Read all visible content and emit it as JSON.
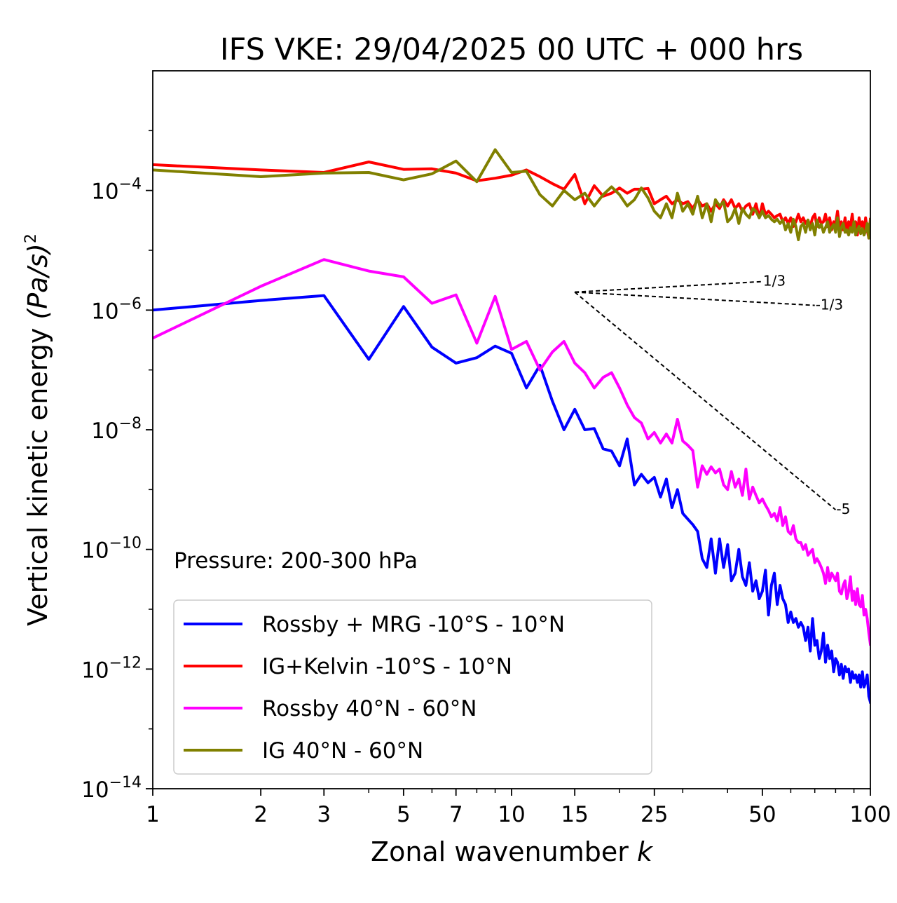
{
  "chart_data": {
    "type": "line",
    "title": "IFS VKE: 29/04/2025 00 UTC + 000 hrs",
    "xlabel_text": "Zonal wavenumber ",
    "xlabel_var": "k",
    "ylabel_text": "Vertical kinetic energy ",
    "ylabel_expr": "(Pa/s)",
    "ylabel_exp": "2",
    "x_scale": "log",
    "y_scale": "log",
    "xlim": [
      1,
      100
    ],
    "ylim": [
      1e-14,
      0.01
    ],
    "x_ticks": [
      1,
      2,
      3,
      5,
      7,
      10,
      15,
      25,
      50,
      100
    ],
    "x_tick_labels": [
      "1",
      "2",
      "3",
      "5",
      "7",
      "10",
      "15",
      "25",
      "50",
      "100"
    ],
    "y_ticks": [
      {
        "value": 1e-14,
        "base": "10",
        "exp": "−14"
      },
      {
        "value": 1e-12,
        "base": "10",
        "exp": "−12"
      },
      {
        "value": 1e-10,
        "base": "10",
        "exp": "−10"
      },
      {
        "value": 1e-08,
        "base": "10",
        "exp": "−8"
      },
      {
        "value": 1e-06,
        "base": "10",
        "exp": "−6"
      },
      {
        "value": 0.0001,
        "base": "10",
        "exp": "−4"
      }
    ],
    "annotation": "Pressure: 200-300 hPa",
    "legend_position": "lower-left",
    "grid": false,
    "series": [
      {
        "name": "Rossby + MRG -10°S - 10°N",
        "color": "#0000ff",
        "x": [
          1,
          2,
          3,
          4,
          5,
          6,
          7,
          8,
          9,
          10,
          11,
          12,
          13,
          14,
          15,
          16,
          17,
          18,
          19,
          20,
          21,
          22,
          23,
          24,
          25,
          26,
          27,
          28,
          29,
          30,
          31,
          32,
          33,
          34,
          35,
          36,
          37,
          38,
          39,
          40,
          41,
          42,
          43,
          44,
          45,
          46,
          47,
          48,
          49,
          50,
          51,
          52,
          53,
          54,
          55,
          56,
          57,
          58,
          59,
          60,
          61,
          62,
          63,
          64,
          65,
          66,
          67,
          68,
          69,
          70,
          71,
          72,
          73,
          74,
          75,
          76,
          77,
          78,
          79,
          80,
          81,
          82,
          83,
          84,
          85,
          86,
          87,
          88,
          89,
          90,
          91,
          92,
          93,
          94,
          95,
          96,
          97,
          98,
          99,
          100
        ],
        "y": [
          1e-06,
          1.45e-06,
          1.75e-06,
          1.5e-07,
          1.15e-06,
          2.4e-07,
          1.3e-07,
          1.6e-07,
          2.5e-07,
          1.9e-07,
          5e-08,
          1.2e-07,
          3e-08,
          1e-08,
          2.2e-08,
          1e-08,
          1.05e-08,
          4.8e-09,
          4.4e-09,
          2.5e-09,
          7e-09,
          1.2e-09,
          1.8e-09,
          1.3e-09,
          1.6e-09,
          7.5e-10,
          1.5e-09,
          5e-10,
          1e-09,
          4e-10,
          3.2e-10,
          2.6e-10,
          2e-10,
          7e-11,
          5e-11,
          1.5e-10,
          4e-11,
          1.5e-10,
          5e-11,
          1.2e-10,
          3e-11,
          4e-11,
          1e-10,
          3.5e-11,
          2.5e-11,
          6e-11,
          2e-11,
          3e-11,
          1.5e-11,
          2e-11,
          4.5e-11,
          8e-12,
          2.5e-11,
          4e-11,
          1.2e-11,
          2.5e-11,
          1.5e-11,
          1.2e-11,
          6e-12,
          9e-12,
          6e-12,
          7e-12,
          5e-12,
          6e-12,
          5e-12,
          3e-12,
          5e-12,
          2e-12,
          7e-12,
          2.5e-12,
          3e-12,
          1.5e-12,
          2e-12,
          4e-12,
          1.3e-12,
          2.5e-12,
          1.5e-12,
          2e-12,
          9e-13,
          1.5e-12,
          1.3e-12,
          8e-13,
          1.2e-12,
          7e-13,
          1.1e-12,
          9e-13,
          1e-12,
          6e-13,
          9e-13,
          7e-13,
          8e-13,
          6e-13,
          8e-13,
          5e-13,
          9e-13,
          5e-13,
          6e-13,
          8e-13,
          3.5e-13,
          2.8e-13
        ]
      },
      {
        "name": "IG+Kelvin -10°S - 10°N",
        "color": "#ff0000",
        "x": [
          1,
          2,
          3,
          4,
          5,
          6,
          7,
          8,
          9,
          10,
          11,
          12,
          13,
          14,
          15,
          16,
          17,
          18,
          19,
          20,
          21,
          22,
          23,
          24,
          25,
          26,
          27,
          28,
          29,
          30,
          31,
          32,
          33,
          34,
          35,
          36,
          37,
          38,
          39,
          40,
          41,
          42,
          43,
          44,
          45,
          46,
          47,
          48,
          49,
          50,
          51,
          52,
          53,
          54,
          55,
          56,
          57,
          58,
          59,
          60,
          61,
          62,
          63,
          64,
          65,
          66,
          67,
          68,
          69,
          70,
          71,
          72,
          73,
          74,
          75,
          76,
          77,
          78,
          79,
          80,
          81,
          82,
          83,
          84,
          85,
          86,
          87,
          88,
          89,
          90,
          91,
          92,
          93,
          94,
          95,
          96,
          97,
          98,
          99,
          100
        ],
        "y": [
          0.00027,
          0.00022,
          0.0002,
          0.0003,
          0.000225,
          0.00023,
          0.000195,
          0.000145,
          0.00016,
          0.00018,
          0.00022,
          0.00017,
          0.00013,
          0.000105,
          0.000185,
          6e-05,
          0.00012,
          8e-05,
          9e-05,
          0.00011,
          9e-05,
          0.000105,
          0.000105,
          0.000108,
          6e-05,
          7e-05,
          8e-05,
          6e-05,
          7e-05,
          6e-05,
          6.5e-05,
          5e-05,
          7e-05,
          5.5e-05,
          6e-05,
          4.5e-05,
          6e-05,
          5e-05,
          7e-05,
          5.5e-05,
          7e-05,
          5e-05,
          6e-05,
          4.5e-05,
          5.5e-05,
          6e-05,
          4e-05,
          6e-05,
          3.5e-05,
          6e-05,
          4e-05,
          4.5e-05,
          4e-05,
          3.5e-05,
          3.8e-05,
          4e-05,
          3e-05,
          3.5e-05,
          2.8e-05,
          3.5e-05,
          2.5e-05,
          3e-05,
          4e-05,
          3e-05,
          3.5e-05,
          2.8e-05,
          3.2e-05,
          2.5e-05,
          3.5e-05,
          4e-05,
          2.5e-05,
          3.5e-05,
          2.8e-05,
          3e-05,
          4e-05,
          2.5e-05,
          3.5e-05,
          2.2e-05,
          3e-05,
          2.8e-05,
          4.5e-05,
          2.5e-05,
          3e-05,
          2.2e-05,
          3.5e-05,
          2e-05,
          3e-05,
          2.5e-05,
          4e-05,
          2.2e-05,
          3e-05,
          1.8e-05,
          3.5e-05,
          2.5e-05,
          3e-05,
          2e-05,
          3.5e-05,
          2.2e-05,
          1.6e-05,
          3.3e-05
        ]
      },
      {
        "name": "Rossby 40°N - 60°N",
        "color": "#ff00ff",
        "x": [
          1,
          2,
          3,
          4,
          5,
          6,
          7,
          8,
          9,
          10,
          11,
          12,
          13,
          14,
          15,
          16,
          17,
          18,
          19,
          20,
          21,
          22,
          23,
          24,
          25,
          26,
          27,
          28,
          29,
          30,
          31,
          32,
          33,
          34,
          35,
          36,
          37,
          38,
          39,
          40,
          41,
          42,
          43,
          44,
          45,
          46,
          47,
          48,
          49,
          50,
          51,
          52,
          53,
          54,
          55,
          56,
          57,
          58,
          59,
          60,
          61,
          62,
          63,
          64,
          65,
          66,
          67,
          68,
          69,
          70,
          71,
          72,
          73,
          74,
          75,
          76,
          77,
          78,
          79,
          80,
          81,
          82,
          83,
          84,
          85,
          86,
          87,
          88,
          89,
          90,
          91,
          92,
          93,
          94,
          95,
          96,
          97,
          98,
          99,
          100
        ],
        "y": [
          3.4e-07,
          2.5e-06,
          7e-06,
          4.5e-06,
          3.6e-06,
          1.3e-06,
          1.8e-06,
          2.8e-07,
          1.7e-06,
          2.2e-07,
          3e-07,
          1e-07,
          2e-07,
          3e-07,
          1.3e-07,
          9e-08,
          5e-08,
          7.5e-08,
          9e-08,
          5e-08,
          2.6e-08,
          1.6e-08,
          1.3e-08,
          7e-09,
          9e-09,
          6e-09,
          8.5e-09,
          6e-09,
          1.5e-08,
          6.5e-09,
          5.5e-09,
          4.5e-09,
          1.1e-09,
          2.5e-09,
          1.8e-09,
          2.4e-09,
          1.9e-09,
          2.2e-09,
          1.2e-09,
          1e-09,
          2e-09,
          1.1e-09,
          1.5e-09,
          8e-10,
          2.2e-09,
          7e-10,
          1.1e-09,
          8e-10,
          6e-10,
          7e-10,
          5.5e-10,
          4.5e-10,
          3.5e-10,
          4e-10,
          3e-10,
          5e-10,
          2.5e-10,
          3.5e-10,
          2e-10,
          1.8e-10,
          2.5e-10,
          1.5e-10,
          1.3e-10,
          1.3e-10,
          1e-10,
          1.2e-10,
          8e-11,
          9e-11,
          1e-10,
          6e-11,
          7e-11,
          6e-11,
          5e-11,
          4e-11,
          2.7e-11,
          5e-11,
          3e-11,
          4e-11,
          3.5e-11,
          3e-11,
          4e-11,
          2e-11,
          1.8e-11,
          2.5e-11,
          3e-11,
          1.5e-11,
          2e-11,
          3.5e-11,
          1.4e-11,
          2e-11,
          1.2e-11,
          2.2e-11,
          1.2e-11,
          1.1e-11,
          1.7e-11,
          8e-12,
          1e-11,
          7e-12,
          4e-12,
          2.6e-12
        ]
      },
      {
        "name": "IG 40°N - 60°N",
        "color": "#808000",
        "x": [
          1,
          2,
          3,
          4,
          5,
          6,
          7,
          8,
          9,
          10,
          11,
          12,
          13,
          14,
          15,
          16,
          17,
          18,
          19,
          20,
          21,
          22,
          23,
          24,
          25,
          26,
          27,
          28,
          29,
          30,
          31,
          32,
          33,
          34,
          35,
          36,
          37,
          38,
          39,
          40,
          41,
          42,
          43,
          44,
          45,
          46,
          47,
          48,
          49,
          50,
          51,
          52,
          53,
          54,
          55,
          56,
          57,
          58,
          59,
          60,
          61,
          62,
          63,
          64,
          65,
          66,
          67,
          68,
          69,
          70,
          71,
          72,
          73,
          74,
          75,
          76,
          77,
          78,
          79,
          80,
          81,
          82,
          83,
          84,
          85,
          86,
          87,
          88,
          89,
          90,
          91,
          92,
          93,
          94,
          95,
          96,
          97,
          98,
          99,
          100
        ],
        "y": [
          0.00022,
          0.00017,
          0.000195,
          0.0002,
          0.00015,
          0.00019,
          0.00031,
          0.00014,
          0.00048,
          0.0002,
          0.00021,
          8.5e-05,
          5.5e-05,
          0.0001,
          7e-05,
          9e-05,
          5.5e-05,
          8.5e-05,
          0.000115,
          8.5e-05,
          5.5e-05,
          7e-05,
          0.00011,
          7.5e-05,
          4.5e-05,
          3.5e-05,
          6e-05,
          3.5e-05,
          9e-05,
          4.5e-05,
          6e-05,
          4e-05,
          8e-05,
          3.5e-05,
          6e-05,
          3e-05,
          7e-05,
          5.5e-05,
          6.5e-05,
          3e-05,
          3.5e-05,
          5e-05,
          2.8e-05,
          5e-05,
          4e-05,
          3.5e-05,
          5e-05,
          4.5e-05,
          3.5e-05,
          4.5e-05,
          3.5e-05,
          3.8e-05,
          3.3e-05,
          3e-05,
          3.3e-05,
          2.8e-05,
          3.2e-05,
          2.2e-05,
          2.8e-05,
          2e-05,
          3.3e-05,
          2.5e-05,
          1.5e-05,
          2.5e-05,
          2.8e-05,
          2e-05,
          3.2e-05,
          2.2e-05,
          2.8e-05,
          1.8e-05,
          3.2e-05,
          2.4e-05,
          2.7e-05,
          2e-05,
          2.4e-05,
          3e-05,
          2e-05,
          2.4e-05,
          2.7e-05,
          2e-05,
          3.5e-05,
          1.7e-05,
          2.4e-05,
          2.8e-05,
          2e-05,
          2.2e-05,
          1.8e-05,
          2.4e-05,
          2e-05,
          3e-05,
          1.8e-05,
          2.2e-05,
          2.5e-05,
          1.9e-05,
          2.3e-05,
          1.8e-05,
          2.1e-05,
          2.8e-05,
          1.6e-05,
          3.2e-05
        ]
      }
    ],
    "reference_lines": [
      {
        "label": "1/3",
        "x": [
          15,
          50
        ],
        "y": [
          2e-06,
          3e-06
        ]
      },
      {
        "label": "-1/3",
        "x": [
          15,
          70
        ],
        "y": [
          2e-06,
          1.2e-06
        ]
      },
      {
        "label": "-5",
        "x": [
          15,
          80
        ],
        "y": [
          2e-06,
          4.6e-10
        ]
      }
    ]
  }
}
